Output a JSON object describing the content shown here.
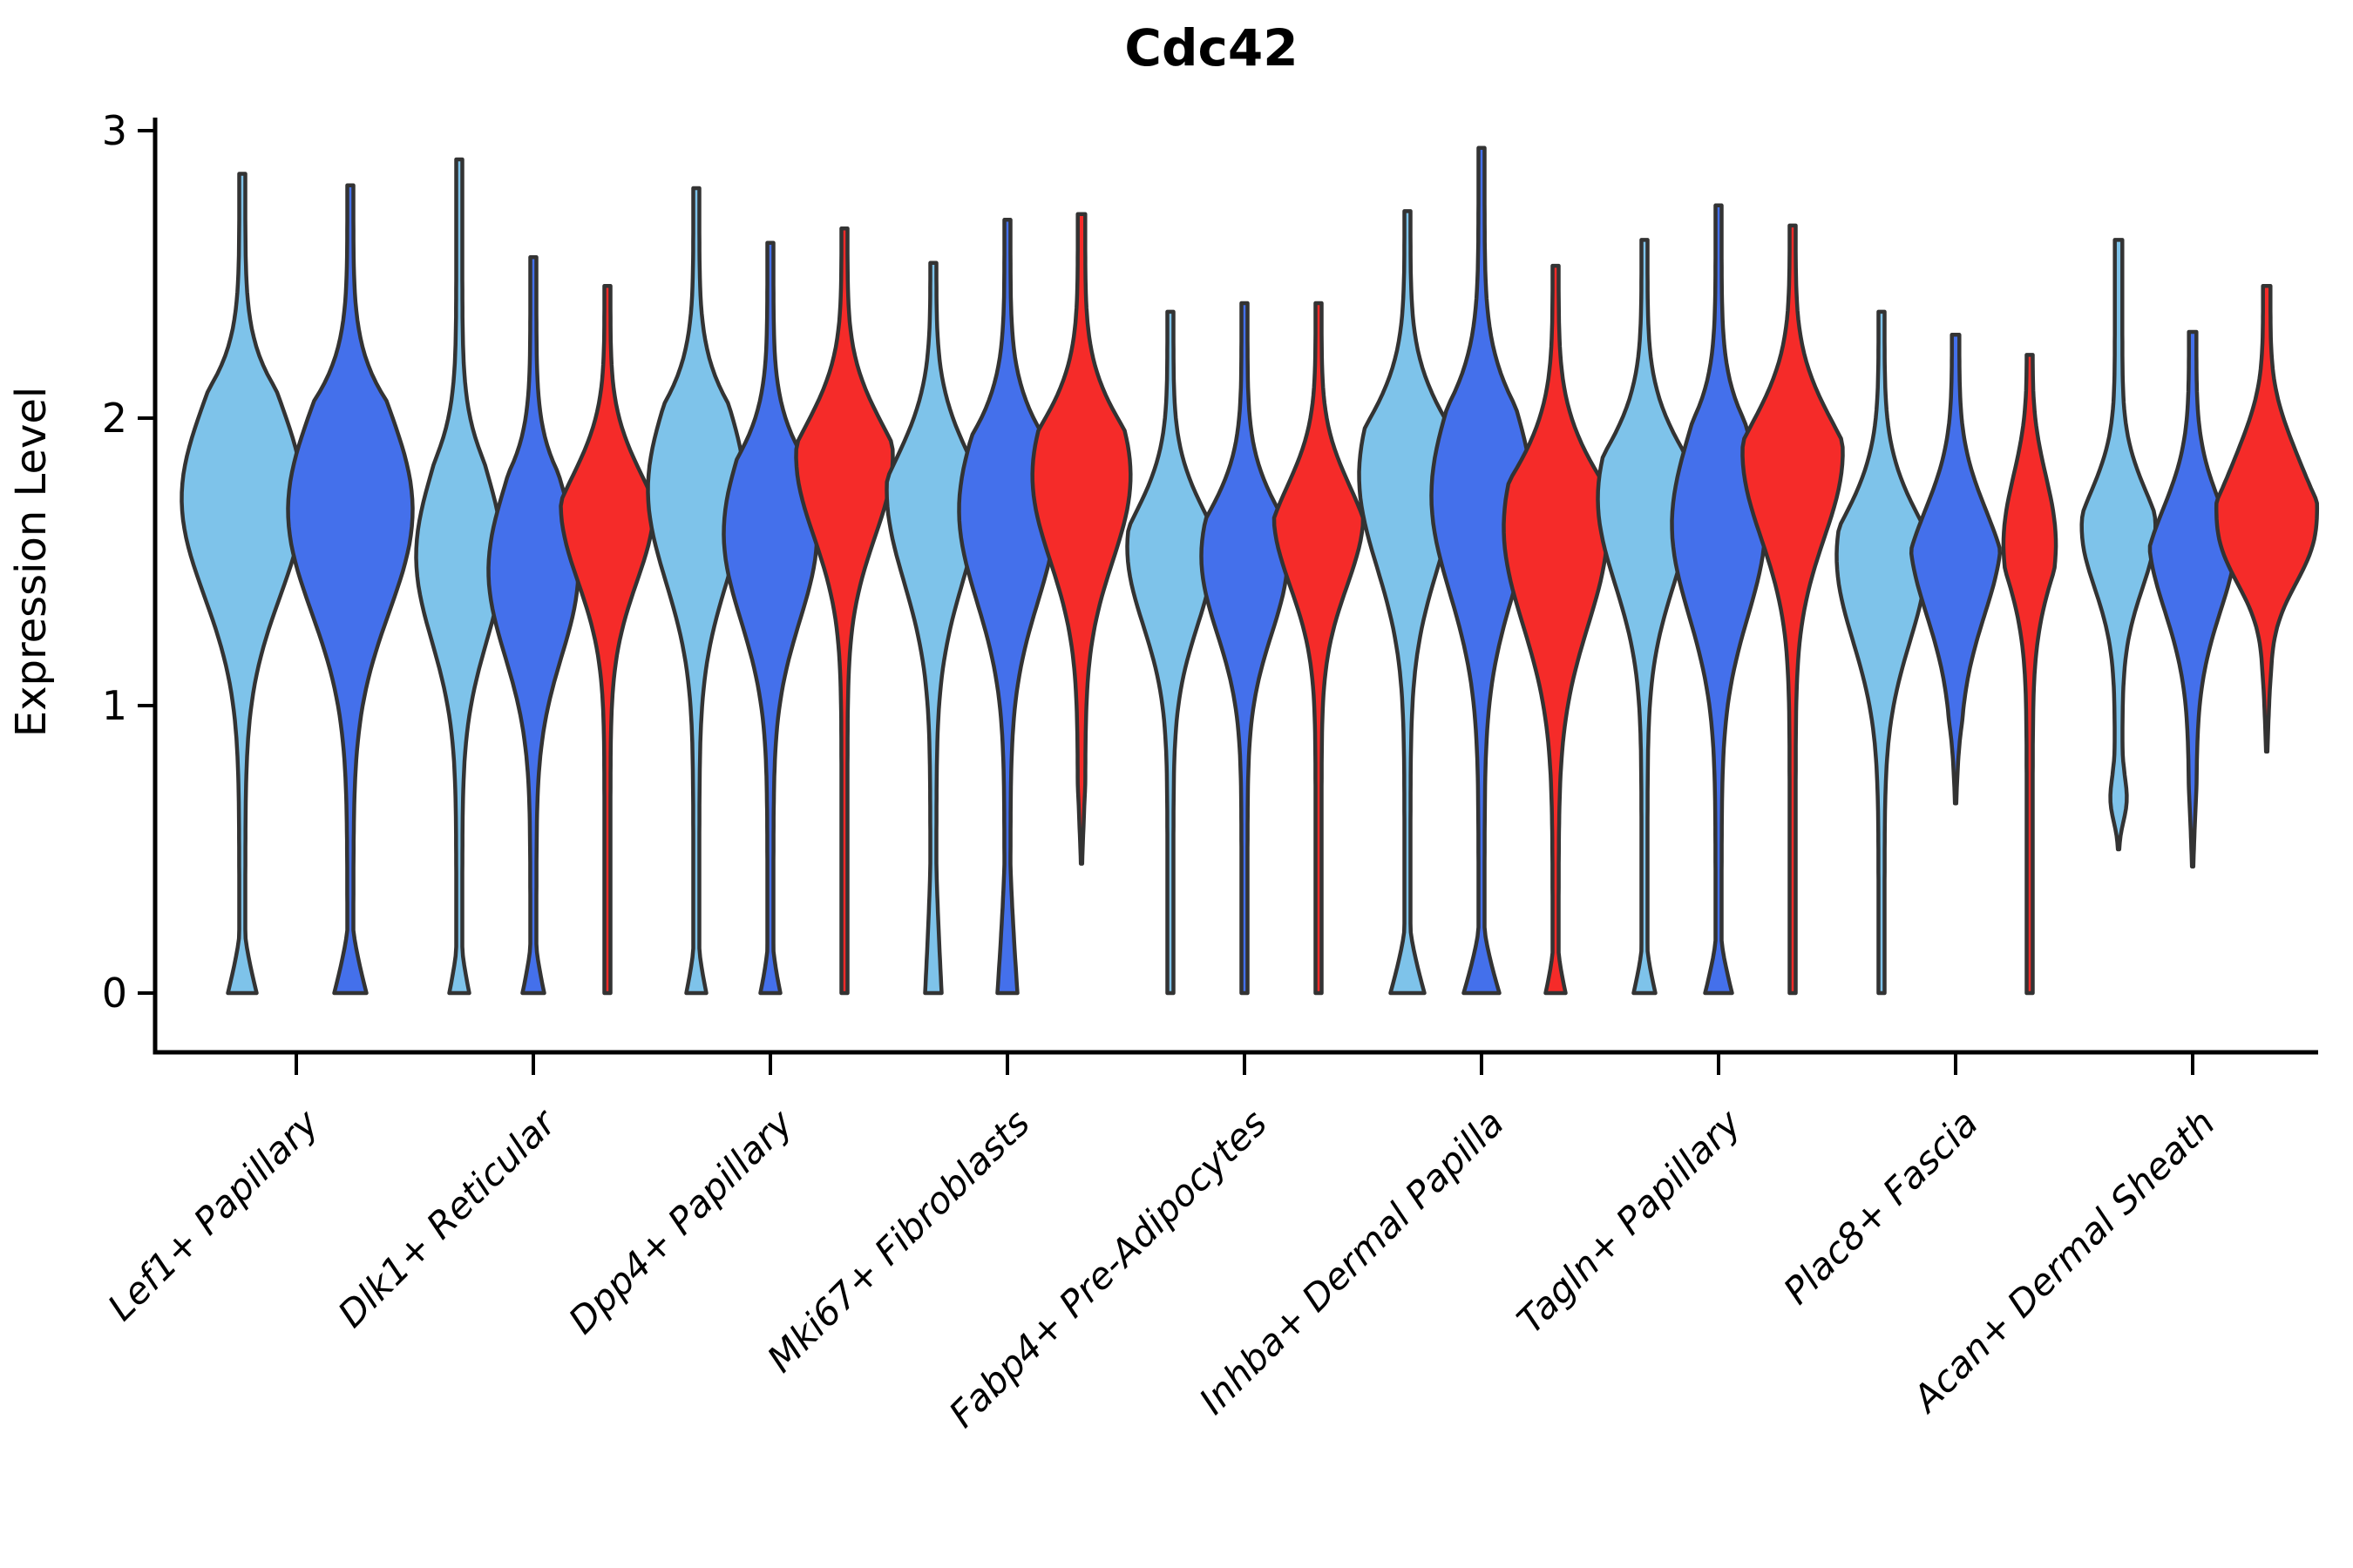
{
  "title": "Cdc42",
  "chart_data": {
    "type": "violin",
    "title": "Cdc42",
    "ylabel": "Expression Level",
    "xlabel": "",
    "ylim": [
      0,
      3
    ],
    "yticks": [
      0,
      1,
      2,
      3
    ],
    "grid": false,
    "legend_position": "none",
    "categories": [
      "Lef1+ Papillary",
      "Dlk1+ Reticular",
      "Dpp4+ Papillary",
      "Mki67+ Fibroblasts",
      "Fabp4+ Pre-Adipocytes",
      "Inhba+ Dermal Papilla",
      "Tagln+ Papillary",
      "Plac8+ Fascia",
      "Acan+ Dermal Sheath"
    ],
    "colors": {
      "light_blue": "#7EC3EA",
      "royal_blue": "#4470EB",
      "red": "#F52B29",
      "outline": "#333333",
      "axis": "#000000"
    },
    "violins": [
      {
        "group": 0,
        "color": "light_blue",
        "offset": -62,
        "top": 2.85,
        "bottom": 0,
        "taper": 0.75,
        "bumps": [
          {
            "c": 1.72,
            "s": 0.48,
            "a": 66
          }
        ],
        "blob": {
          "h": 0.2,
          "a": 13
        }
      },
      {
        "group": 0,
        "color": "royal_blue",
        "offset": 62,
        "top": 2.81,
        "bottom": 0,
        "taper": 0.75,
        "bumps": [
          {
            "c": 1.68,
            "s": 0.5,
            "a": 68
          }
        ],
        "blob": {
          "h": 0.22,
          "a": 15
        }
      },
      {
        "group": 1,
        "color": "light_blue",
        "offset": -85,
        "top": 2.9,
        "bottom": 0,
        "taper": 1.05,
        "bumps": [
          {
            "c": 1.52,
            "s": 0.42,
            "a": 46
          }
        ],
        "blob": {
          "h": 0.15,
          "a": 8
        }
      },
      {
        "group": 1,
        "color": "royal_blue",
        "offset": 0,
        "top": 2.56,
        "bottom": 0,
        "taper": 0.75,
        "bumps": [
          {
            "c": 1.47,
            "s": 0.42,
            "a": 48
          }
        ],
        "blob": {
          "h": 0.16,
          "a": 9
        }
      },
      {
        "group": 1,
        "color": "red",
        "offset": 85,
        "top": 2.46,
        "bottom": 0,
        "taper": 0.75,
        "bumps": [
          {
            "c": 1.7,
            "s": 0.38,
            "a": 50
          }
        ],
        "blob": null
      },
      {
        "group": 2,
        "color": "light_blue",
        "offset": -85,
        "top": 2.8,
        "bottom": 0,
        "taper": 0.75,
        "bumps": [
          {
            "c": 1.75,
            "s": 0.45,
            "a": 52
          }
        ],
        "blob": {
          "h": 0.15,
          "a": 8
        }
      },
      {
        "group": 2,
        "color": "royal_blue",
        "offset": 0,
        "top": 2.61,
        "bottom": 0,
        "taper": 0.75,
        "bumps": [
          {
            "c": 1.6,
            "s": 0.43,
            "a": 50
          }
        ],
        "blob": {
          "h": 0.15,
          "a": 8
        }
      },
      {
        "group": 2,
        "color": "red",
        "offset": 85,
        "top": 2.66,
        "bottom": 0,
        "taper": 0.75,
        "bumps": [
          {
            "c": 1.87,
            "s": 0.4,
            "a": 52
          }
        ],
        "blob": null
      },
      {
        "group": 3,
        "color": "light_blue",
        "offset": -85,
        "top": 2.54,
        "bottom": 0,
        "taper": 0.75,
        "bumps": [
          {
            "c": 1.75,
            "s": 0.45,
            "a": 50
          }
        ],
        "blob": {
          "h": 0.45,
          "a": 6
        }
      },
      {
        "group": 3,
        "color": "royal_blue",
        "offset": 0,
        "top": 2.69,
        "bottom": 0,
        "taper": 0.75,
        "bumps": [
          {
            "c": 1.68,
            "s": 0.45,
            "a": 52
          }
        ],
        "blob": {
          "h": 0.45,
          "a": 8
        }
      },
      {
        "group": 3,
        "color": "red",
        "offset": 85,
        "top": 2.71,
        "bottom": 0.45,
        "taper": 0.75,
        "bumps": [
          {
            "c": 1.8,
            "s": 0.42,
            "a": 52
          }
        ],
        "blob": null
      },
      {
        "group": 4,
        "color": "light_blue",
        "offset": -85,
        "top": 2.37,
        "bottom": 0,
        "taper": 0.75,
        "bumps": [
          {
            "c": 1.55,
            "s": 0.38,
            "a": 46
          }
        ],
        "blob": null
      },
      {
        "group": 4,
        "color": "royal_blue",
        "offset": 0,
        "top": 2.4,
        "bottom": 0,
        "taper": 0.75,
        "bumps": [
          {
            "c": 1.52,
            "s": 0.38,
            "a": 46
          }
        ],
        "blob": null
      },
      {
        "group": 4,
        "color": "red",
        "offset": 85,
        "top": 2.4,
        "bottom": 0,
        "taper": 0.75,
        "bumps": [
          {
            "c": 1.67,
            "s": 0.36,
            "a": 48
          }
        ],
        "blob": null
      },
      {
        "group": 5,
        "color": "light_blue",
        "offset": -85,
        "top": 2.72,
        "bottom": 0,
        "taper": 0.75,
        "bumps": [
          {
            "c": 1.8,
            "s": 0.45,
            "a": 52
          }
        ],
        "blob": {
          "h": 0.22,
          "a": 16
        }
      },
      {
        "group": 5,
        "color": "royal_blue",
        "offset": 0,
        "top": 2.94,
        "bottom": 0,
        "taper": 0.9,
        "bumps": [
          {
            "c": 1.73,
            "s": 0.48,
            "a": 54
          }
        ],
        "blob": {
          "h": 0.22,
          "a": 17
        }
      },
      {
        "group": 5,
        "color": "red",
        "offset": 85,
        "top": 2.53,
        "bottom": 0,
        "taper": 0.75,
        "bumps": [
          {
            "c": 1.62,
            "s": 0.48,
            "a": 56
          }
        ],
        "blob": {
          "h": 0.14,
          "a": 8
        }
      },
      {
        "group": 6,
        "color": "light_blue",
        "offset": -85,
        "top": 2.62,
        "bottom": 0,
        "taper": 0.75,
        "bumps": [
          {
            "c": 1.72,
            "s": 0.42,
            "a": 50
          }
        ],
        "blob": {
          "h": 0.15,
          "a": 9
        }
      },
      {
        "group": 6,
        "color": "royal_blue",
        "offset": 0,
        "top": 2.74,
        "bottom": 0,
        "taper": 0.75,
        "bumps": [
          {
            "c": 1.63,
            "s": 0.45,
            "a": 50
          }
        ],
        "blob": {
          "h": 0.18,
          "a": 12
        }
      },
      {
        "group": 6,
        "color": "red",
        "offset": 85,
        "top": 2.67,
        "bottom": 0,
        "taper": 0.75,
        "bumps": [
          {
            "c": 1.88,
            "s": 0.42,
            "a": 54
          }
        ],
        "blob": null
      },
      {
        "group": 7,
        "color": "light_blue",
        "offset": -85,
        "top": 2.37,
        "bottom": 0,
        "taper": 0.75,
        "bumps": [
          {
            "c": 1.52,
            "s": 0.42,
            "a": 48
          }
        ],
        "blob": null
      },
      {
        "group": 7,
        "color": "royal_blue",
        "offset": 0,
        "top": 2.29,
        "bottom": 0.66,
        "taper": 0.75,
        "bumps": [
          {
            "c": 1.6,
            "s": 0.4,
            "a": 48
          }
        ],
        "blob": null
      },
      {
        "group": 7,
        "color": "red",
        "offset": 85,
        "top": 2.22,
        "bottom": 0,
        "taper": 0.75,
        "bumps": [
          {
            "c": 1.78,
            "s": 0.38,
            "a": 48
          }
        ],
        "blob": null
      },
      {
        "group": 8,
        "color": "light_blue",
        "offset": -85,
        "top": 2.62,
        "bottom": 0.5,
        "taper": 0.95,
        "bumps": [
          {
            "c": 1.62,
            "s": 0.3,
            "a": 38
          },
          {
            "c": 0.63,
            "s": 0.11,
            "a": 13
          }
        ],
        "blob": null
      },
      {
        "group": 8,
        "color": "royal_blue",
        "offset": 0,
        "top": 2.3,
        "bottom": 0.44,
        "taper": 0.75,
        "bumps": [
          {
            "c": 1.6,
            "s": 0.38,
            "a": 46
          }
        ],
        "blob": null
      },
      {
        "group": 8,
        "color": "red",
        "offset": 85,
        "top": 2.46,
        "bottom": 0.84,
        "taper": 0.75,
        "bumps": [
          {
            "c": 1.88,
            "s": 0.3,
            "a": 46
          },
          {
            "c": 1.55,
            "s": 0.22,
            "a": 34
          }
        ],
        "blob": null
      }
    ]
  }
}
